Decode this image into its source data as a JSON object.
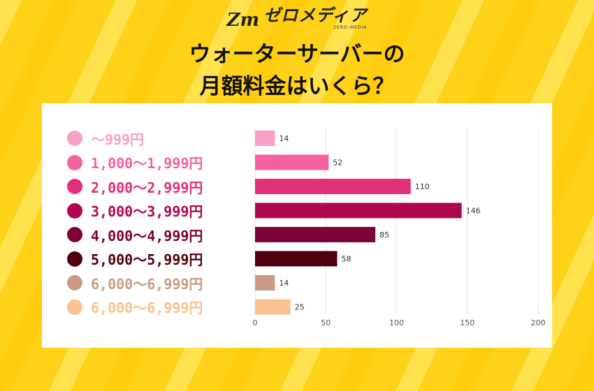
{
  "brand": {
    "name": "ゼロメディア",
    "sub": "ZERO-MEDIA",
    "mark": "Zm"
  },
  "title_line1": "ウォーターサーバーの",
  "title_line2": "月額料金はいくら？",
  "chart_data": {
    "type": "bar",
    "orientation": "horizontal",
    "title": "ウォーターサーバーの月額料金はいくら？",
    "categories": [
      "〜999円",
      "1,000〜1,999円",
      "2,000〜2,999円",
      "3,000〜3,999円",
      "4,000〜4,999円",
      "5,000〜5,999円",
      "6,000〜6,999円",
      "6,000〜6,999円"
    ],
    "values": [
      14,
      52,
      110,
      146,
      85,
      58,
      14,
      25
    ],
    "colors": [
      "#f7a0c8",
      "#f4639f",
      "#e0307a",
      "#b0064f",
      "#7d0235",
      "#4f000e",
      "#c99b86",
      "#f9c28f"
    ],
    "xlim": [
      0,
      200
    ],
    "xticks": [
      0,
      50,
      100,
      150,
      200
    ],
    "grid": true,
    "xlabel": "",
    "ylabel": "",
    "legend": "left"
  }
}
